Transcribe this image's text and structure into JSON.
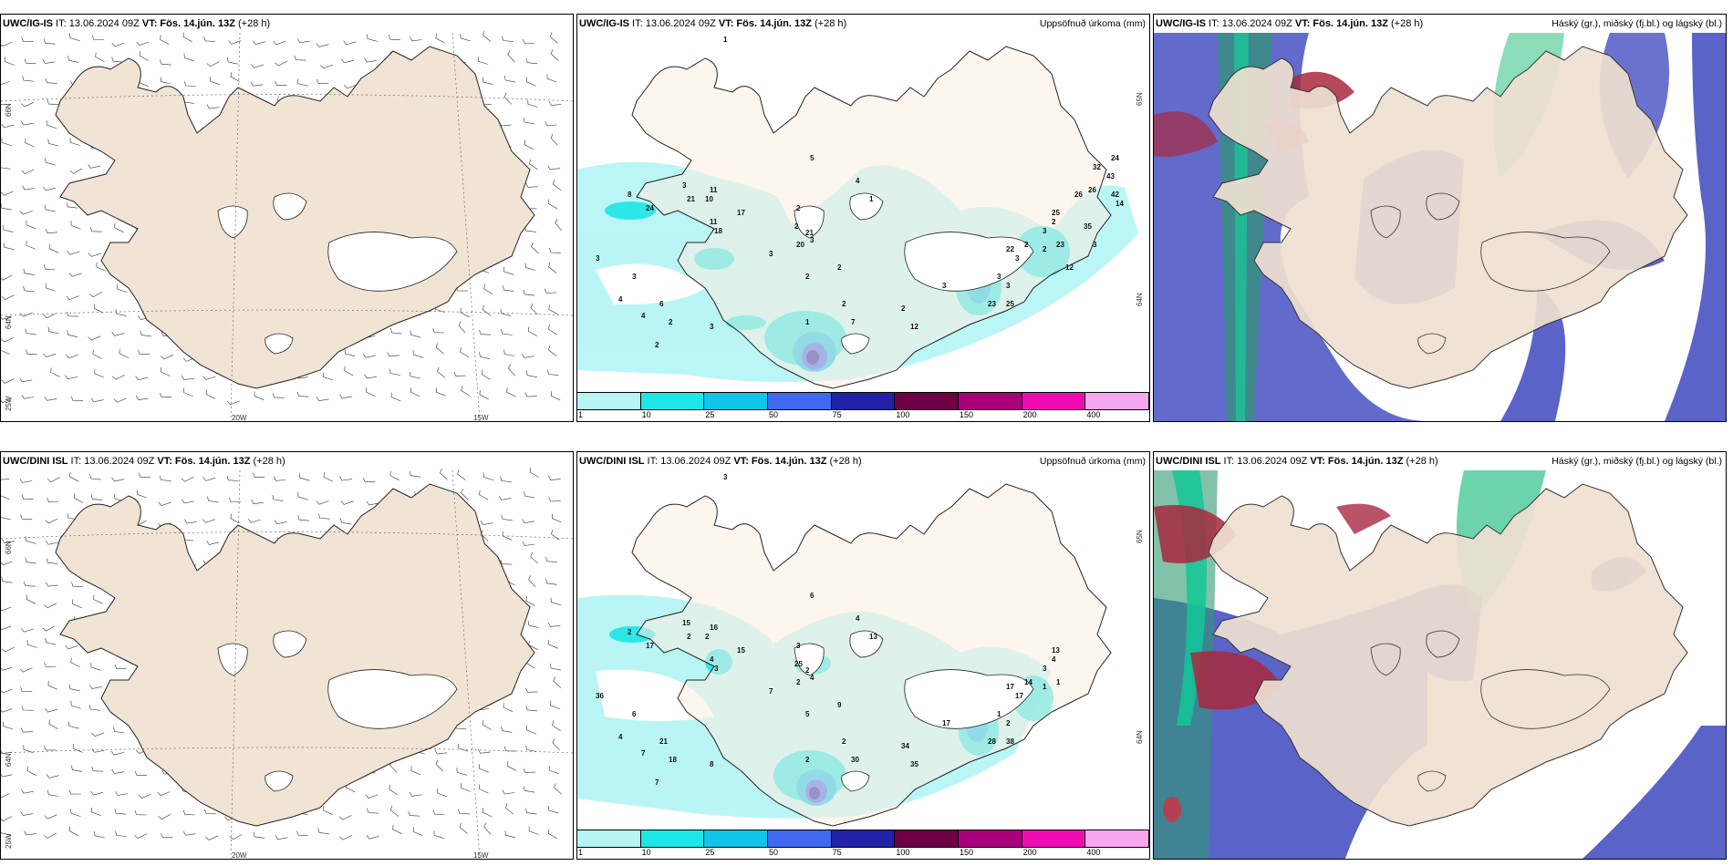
{
  "panels": {
    "r1_wind": {
      "model": "UWC/IG-IS",
      "it": " IT: 13.06.2024 09Z ",
      "vt": "VT: Fös. 14.jún. 13Z",
      "lead": " (+28 h)",
      "lbl_lat1": "66N",
      "lbl_lat2": "64N",
      "lbl_lon0": "25W",
      "lbl_lon1": "20W",
      "lbl_lon2": "15W"
    },
    "r1_precip": {
      "model": "UWC/IG-IS",
      "it": " IT: 13.06.2024 09Z ",
      "vt": "VT: Fös. 14.jún. 13Z",
      "lead": " (+28 h)",
      "title": "Uppsöfnuð úrkoma (mm)",
      "lbl_lat1": "65N",
      "lbl_lat2": "64N"
    },
    "r1_cloud": {
      "model": "UWC/IG-IS",
      "it": " IT: 13.06.2024 09Z ",
      "vt": "VT: Fös. 14.jún. 13Z",
      "lead": " (+28 h)",
      "title": "Háský (gr.), miðský (fj.bl.) og lágský (bl.)"
    },
    "r2_wind": {
      "model": "UWC/DINI ISL",
      "it": " IT: 13.06.2024 09Z ",
      "vt": "VT: Fös. 14.jún. 13Z",
      "lead": " (+28 h)",
      "lbl_lat1": "66N",
      "lbl_lat2": "64N",
      "lbl_lon0": "25W",
      "lbl_lon1": "20W",
      "lbl_lon2": "15W"
    },
    "r2_precip": {
      "model": "UWC/DINI ISL",
      "it": " IT: 13.06.2024 09Z ",
      "vt": "VT: Fös. 14.jún. 13Z",
      "lead": " (+28 h)",
      "title": "Uppsöfnuð úrkoma (mm)",
      "lbl_lat1": "65N",
      "lbl_lat2": "64N"
    },
    "r2_cloud": {
      "model": "UWC/DINI ISL",
      "it": " IT: 13.06.2024 09Z ",
      "vt": "VT: Fös. 14.jún. 13Z",
      "lead": " (+28 h)",
      "title": "Háský (gr.), miðský (fj.bl.) og lágský (bl.)"
    }
  },
  "colorbar": {
    "labels": [
      "1",
      "10",
      "25",
      "50",
      "75",
      "100",
      "150",
      "200",
      "400"
    ],
    "colors": [
      "#b7f5f5",
      "#1de6e6",
      "#12c4ea",
      "#3f6af0",
      "#2222a8",
      "#6e0046",
      "#a8007a",
      "#ee0cb2",
      "#f6a8ee"
    ]
  },
  "precip_labels_r1": [
    "1",
    "5",
    "4",
    "2",
    "1",
    "2",
    "3",
    "3",
    "2",
    "2",
    "3",
    "3",
    "4",
    "6",
    "4",
    "2",
    "3",
    "2",
    "3",
    "11",
    "21",
    "10",
    "11",
    "8",
    "24",
    "17",
    "18",
    "21",
    "20",
    "2",
    "1",
    "7",
    "12",
    "2",
    "3",
    "22",
    "2",
    "3",
    "3",
    "3",
    "3",
    "2",
    "2",
    "23",
    "23",
    "25",
    "25",
    "26",
    "26",
    "35",
    "32",
    "24",
    "43",
    "42",
    "14",
    "3",
    "12"
  ],
  "precip_labels_r2": [
    "3",
    "6",
    "4",
    "3",
    "13",
    "25",
    "4",
    "7",
    "5",
    "9",
    "36",
    "6",
    "4",
    "21",
    "7",
    "18",
    "8",
    "7",
    "15",
    "16",
    "2",
    "2",
    "4",
    "2",
    "17",
    "15",
    "3",
    "2",
    "2",
    "2",
    "2",
    "30",
    "35",
    "34",
    "17",
    "17",
    "14",
    "17",
    "1",
    "2",
    "3",
    "4",
    "1",
    "1",
    "28",
    "38",
    "13"
  ]
}
